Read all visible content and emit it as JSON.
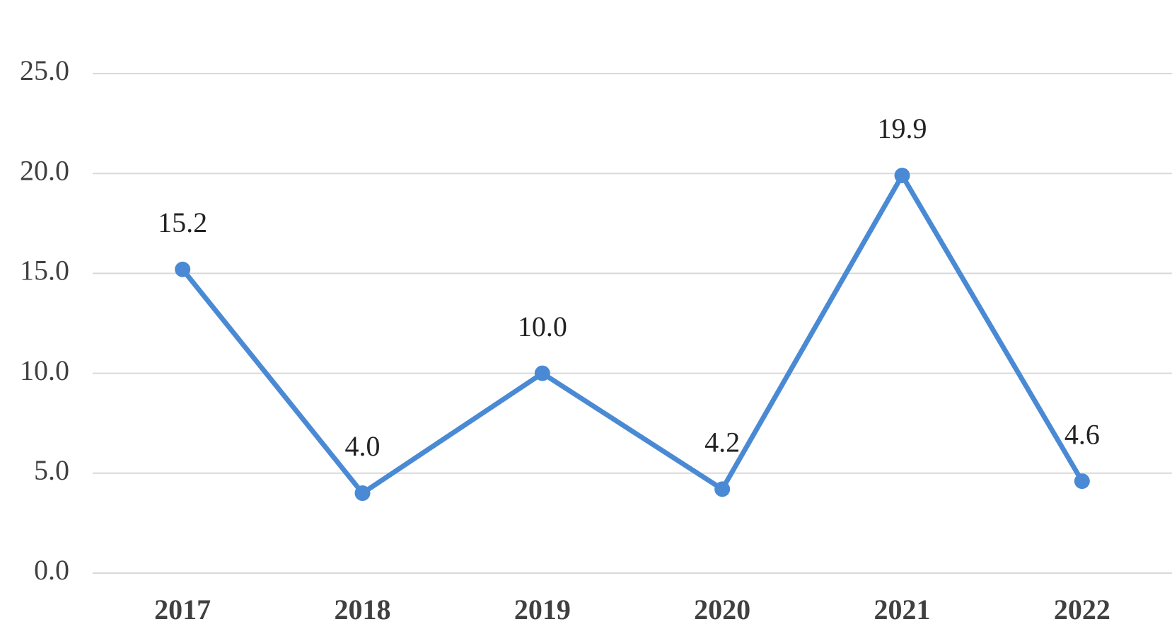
{
  "chart_data": {
    "type": "line",
    "categories": [
      "2017",
      "2018",
      "2019",
      "2020",
      "2021",
      "2022"
    ],
    "values": [
      15.2,
      4.0,
      10.0,
      4.2,
      19.9,
      4.6
    ],
    "value_labels": [
      "15.2",
      "4.0",
      "10.0",
      "4.2",
      "19.9",
      "4.6"
    ],
    "color": "#4a8ad4",
    "ylim": [
      0,
      25
    ],
    "yticks": [
      {
        "value": 0,
        "label": "0.0"
      },
      {
        "value": 5,
        "label": "5.0"
      },
      {
        "value": 10,
        "label": "10.0"
      },
      {
        "value": 15,
        "label": "15.0"
      },
      {
        "value": 20,
        "label": "20.0"
      },
      {
        "value": 25,
        "label": "25.0"
      }
    ],
    "grid": true
  }
}
